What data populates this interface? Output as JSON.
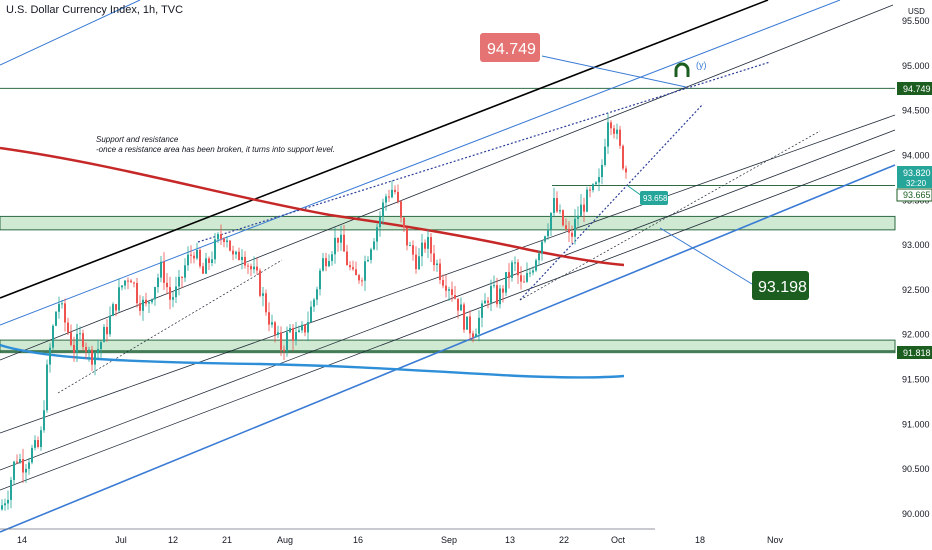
{
  "header": {
    "title": "U.S. Dollar Currency Index, 1h, TVC",
    "currency": "USD"
  },
  "note": {
    "line1": "Support and resistance",
    "line2": "-once a resistance area has been broken, it turns into support level."
  },
  "callouts": {
    "top_value": "94.749",
    "bottom_value": "93.198",
    "small_value": "93.658",
    "wave_label": "(y)"
  },
  "price_tags": {
    "resistance": "94.749",
    "current": "93.820",
    "countdown": "32:20",
    "level": "93.665",
    "support": "91.818"
  },
  "colors": {
    "up": "#26a69a",
    "down": "#ef5350",
    "channel_blue": "#3a7bd5",
    "red_ma": "#c62828",
    "blue_ma": "#2e8fd8",
    "zone_fill": "#cfe9d2",
    "zone_line": "#2e6b43",
    "callout_red": "#e57373",
    "callout_green": "#1b5e20"
  },
  "chart_data": {
    "type": "candlestick",
    "title": "U.S. Dollar Currency Index, 1h, TVC",
    "y_ticks": [
      "95.500",
      "95.000",
      "94.500",
      "94.000",
      "93.500",
      "93.000",
      "92.500",
      "92.000",
      "91.500",
      "91.000",
      "90.500",
      "90.000"
    ],
    "x_ticks": [
      "14",
      "Jul",
      "12",
      "21",
      "Aug",
      "16",
      "Sep",
      "13",
      "22",
      "Oct",
      "18",
      "Nov"
    ],
    "ylim": [
      89.85,
      95.65
    ],
    "zones": [
      {
        "low": 93.17,
        "high": 93.32
      },
      {
        "low": 91.8,
        "high": 91.94
      }
    ],
    "horizontal_levels": [
      94.749,
      93.665,
      91.818
    ],
    "price_path": [
      [
        0,
        90.05
      ],
      [
        8,
        90.25
      ],
      [
        16,
        90.65
      ],
      [
        24,
        90.55
      ],
      [
        32,
        90.7
      ],
      [
        40,
        90.75
      ],
      [
        46,
        91.5
      ],
      [
        52,
        92.0
      ],
      [
        58,
        92.4
      ],
      [
        66,
        92.1
      ],
      [
        74,
        91.85
      ],
      [
        82,
        92.0
      ],
      [
        90,
        91.75
      ],
      [
        98,
        91.85
      ],
      [
        106,
        92.05
      ],
      [
        114,
        92.3
      ],
      [
        122,
        92.55
      ],
      [
        130,
        92.7
      ],
      [
        138,
        92.4
      ],
      [
        146,
        92.3
      ],
      [
        154,
        92.55
      ],
      [
        162,
        92.75
      ],
      [
        170,
        92.4
      ],
      [
        178,
        92.5
      ],
      [
        186,
        92.8
      ],
      [
        194,
        92.95
      ],
      [
        202,
        92.65
      ],
      [
        210,
        92.85
      ],
      [
        218,
        93.05
      ],
      [
        226,
        93.15
      ],
      [
        234,
        92.8
      ],
      [
        242,
        92.95
      ],
      [
        250,
        92.75
      ],
      [
        258,
        92.6
      ],
      [
        266,
        92.3
      ],
      [
        274,
        92.0
      ],
      [
        282,
        91.85
      ],
      [
        290,
        92.05
      ],
      [
        298,
        91.95
      ],
      [
        306,
        92.1
      ],
      [
        314,
        92.4
      ],
      [
        322,
        92.8
      ],
      [
        330,
        92.95
      ],
      [
        338,
        93.1
      ],
      [
        346,
        92.85
      ],
      [
        354,
        92.6
      ],
      [
        362,
        92.7
      ],
      [
        370,
        93.0
      ],
      [
        378,
        93.25
      ],
      [
        386,
        93.55
      ],
      [
        394,
        93.65
      ],
      [
        402,
        93.2
      ],
      [
        410,
        92.95
      ],
      [
        418,
        92.8
      ],
      [
        426,
        93.05
      ],
      [
        434,
        92.85
      ],
      [
        442,
        92.65
      ],
      [
        450,
        92.55
      ],
      [
        458,
        92.35
      ],
      [
        466,
        92.1
      ],
      [
        474,
        92.05
      ],
      [
        482,
        92.25
      ],
      [
        490,
        92.5
      ],
      [
        498,
        92.4
      ],
      [
        506,
        92.6
      ],
      [
        514,
        92.8
      ],
      [
        522,
        92.5
      ],
      [
        530,
        92.7
      ],
      [
        538,
        92.95
      ],
      [
        546,
        93.2
      ],
      [
        554,
        93.45
      ],
      [
        562,
        93.25
      ],
      [
        570,
        93.05
      ],
      [
        578,
        93.35
      ],
      [
        586,
        93.5
      ],
      [
        594,
        93.6
      ],
      [
        600,
        93.7
      ],
      [
        604,
        94.1
      ],
      [
        608,
        94.45
      ],
      [
        612,
        94.4
      ],
      [
        616,
        94.25
      ],
      [
        620,
        94.05
      ],
      [
        624,
        93.9
      ],
      [
        627,
        93.8
      ]
    ]
  }
}
